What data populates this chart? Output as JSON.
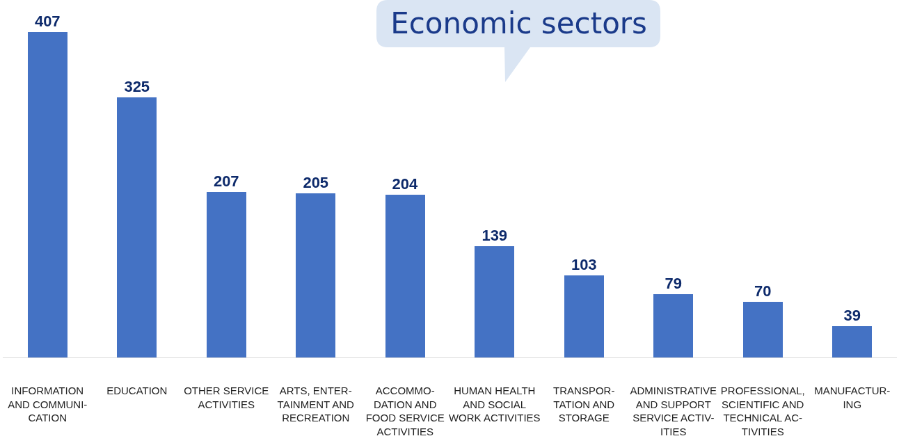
{
  "chart_data": {
    "type": "bar",
    "title": "Economic sectors",
    "categories": [
      "INFORMATION\nAND COMMUNI-\nCATION",
      "EDUCATION",
      "OTHER SERVICE\nACTIVITIES",
      "ARTS, ENTER-\nTAINMENT AND\nRECREATION",
      "ACCOMMO-\nDATION AND\nFOOD SERVICE\nACTIVITIES",
      "HUMAN HEALTH\nAND SOCIAL\nWORK ACTIVITIES",
      "TRANSPOR-\nTATION AND\nSTORAGE",
      "ADMINISTRATIVE\nAND SUPPORT\nSERVICE ACTIV-\nITIES",
      "PROFESSIONAL,\nSCIENTIFIC AND\nTECHNICAL AC-\nTIVITIES",
      "MANUFACTUR-\nING"
    ],
    "values": [
      407,
      325,
      207,
      205,
      204,
      139,
      103,
      79,
      70,
      39
    ],
    "color": "#4472c4",
    "data_labels": true,
    "grid": false
  }
}
